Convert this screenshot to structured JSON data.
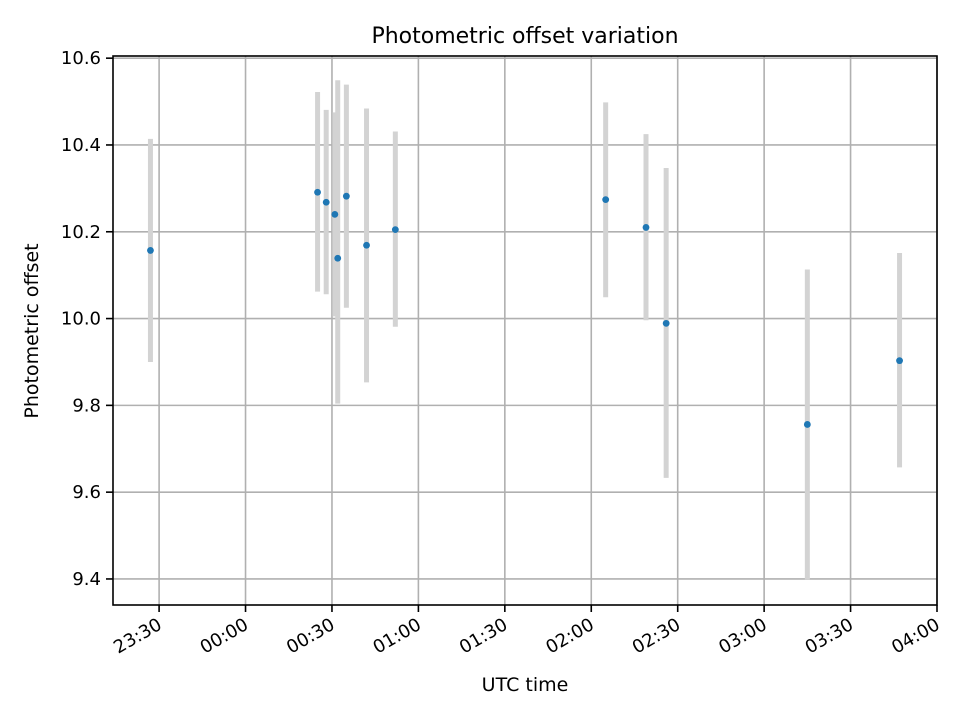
{
  "chart_data": {
    "type": "scatter",
    "title": "Photometric offset variation",
    "xlabel": "UTC time",
    "ylabel": "Photometric offset",
    "xlim": [
      "23:14",
      "04:00"
    ],
    "ylim": [
      9.34,
      10.605
    ],
    "grid": true,
    "x_ticks": [
      "23:30",
      "00:00",
      "00:30",
      "01:00",
      "01:30",
      "02:00",
      "02:30",
      "03:00",
      "03:30",
      "04:00"
    ],
    "y_ticks": [
      "9.4",
      "9.6",
      "9.8",
      "10.0",
      "10.2",
      "10.4",
      "10.6"
    ],
    "point_color": "#1f77b4",
    "errorbar_color": "#d3d3d3",
    "points": [
      {
        "x": "23:27",
        "y": 10.157,
        "low": 9.9,
        "high": 10.414
      },
      {
        "x": "00:25",
        "y": 10.291,
        "low": 10.062,
        "high": 10.522
      },
      {
        "x": "00:28",
        "y": 10.268,
        "low": 10.056,
        "high": 10.481
      },
      {
        "x": "00:31",
        "y": 10.24,
        "low": 10.005,
        "high": 10.475
      },
      {
        "x": "00:32",
        "y": 10.139,
        "low": 9.804,
        "high": 10.549
      },
      {
        "x": "00:35",
        "y": 10.282,
        "low": 10.025,
        "high": 10.539
      },
      {
        "x": "00:42",
        "y": 10.169,
        "low": 9.853,
        "high": 10.484
      },
      {
        "x": "00:52",
        "y": 10.205,
        "low": 9.981,
        "high": 10.431
      },
      {
        "x": "02:05",
        "y": 10.274,
        "low": 10.049,
        "high": 10.498
      },
      {
        "x": "02:19",
        "y": 10.21,
        "low": 9.996,
        "high": 10.425
      },
      {
        "x": "02:26",
        "y": 9.989,
        "low": 9.633,
        "high": 10.347
      },
      {
        "x": "03:15",
        "y": 9.756,
        "low": 9.399,
        "high": 10.113
      },
      {
        "x": "03:47",
        "y": 9.903,
        "low": 9.657,
        "high": 10.151
      }
    ]
  }
}
